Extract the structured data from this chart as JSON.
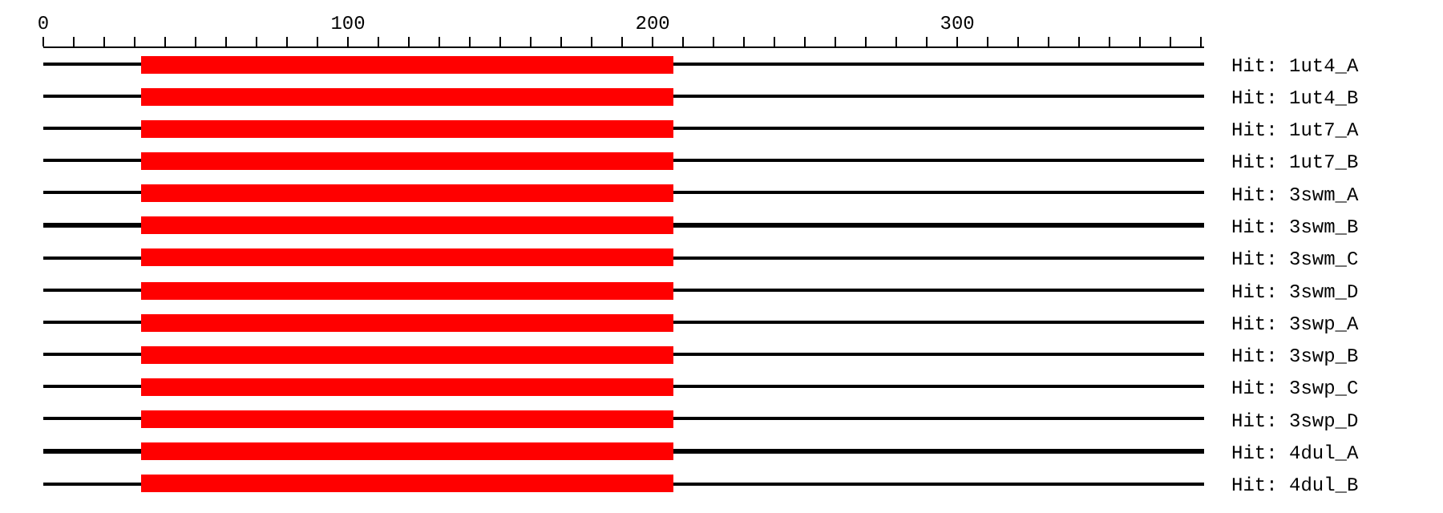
{
  "chart_data": {
    "type": "bar",
    "orientation": "horizontal",
    "categories": [
      "Hit: 1ut4_A",
      "Hit: 1ut4_B",
      "Hit: 1ut7_A",
      "Hit: 1ut7_B",
      "Hit: 3swm_A",
      "Hit: 3swm_B",
      "Hit: 3swm_C",
      "Hit: 3swm_D",
      "Hit: 3swp_A",
      "Hit: 3swp_B",
      "Hit: 3swp_C",
      "Hit: 3swp_D",
      "Hit: 4dul_A",
      "Hit: 4dul_B"
    ],
    "series": [
      {
        "color": "#000000",
        "base": [
          0,
          0,
          0,
          0,
          0,
          0,
          0,
          0,
          0,
          0,
          0,
          0,
          0,
          0
        ],
        "values": [
          381,
          381,
          381,
          381,
          381,
          381,
          381,
          381,
          381,
          381,
          381,
          381,
          381,
          381
        ]
      },
      {
        "color": "#ff0000",
        "base": [
          32,
          32,
          32,
          32,
          32,
          32,
          32,
          32,
          32,
          32,
          32,
          32,
          32,
          32
        ],
        "values": [
          175,
          175,
          175,
          175,
          175,
          175,
          175,
          175,
          175,
          175,
          175,
          175,
          175,
          175
        ]
      }
    ],
    "xlim": [
      0,
      381
    ],
    "xticks": [
      0,
      {
        "value": 10,
        "label": null
      },
      {
        "value": 20,
        "label": null
      },
      {
        "value": 30,
        "label": null
      },
      {
        "value": 40,
        "label": null
      },
      {
        "value": 50,
        "label": null
      },
      {
        "value": 60,
        "label": null
      },
      {
        "value": 70,
        "label": null
      },
      {
        "value": 80,
        "label": null
      },
      {
        "value": 90,
        "label": null
      },
      100,
      {
        "value": 110,
        "label": null
      },
      {
        "value": 120,
        "label": null
      },
      {
        "value": 130,
        "label": null
      },
      {
        "value": 140,
        "label": null
      },
      {
        "value": 150,
        "label": null
      },
      {
        "value": 160,
        "label": null
      },
      {
        "value": 170,
        "label": null
      },
      {
        "value": 180,
        "label": null
      },
      {
        "value": 190,
        "label": null
      },
      200,
      {
        "value": 210,
        "label": null
      },
      {
        "value": 220,
        "label": null
      },
      {
        "value": 230,
        "label": null
      },
      {
        "value": 240,
        "label": null
      },
      {
        "value": 250,
        "label": null
      },
      {
        "value": 260,
        "label": null
      },
      {
        "value": 270,
        "label": null
      },
      {
        "value": 280,
        "label": null
      },
      {
        "value": 290,
        "label": null
      },
      300,
      {
        "value": 310,
        "label": null
      },
      {
        "value": 320,
        "label": null
      },
      {
        "value": 330,
        "label": null
      },
      {
        "value": 340,
        "label": null
      },
      {
        "value": 350,
        "label": null
      },
      {
        "value": 360,
        "label": null
      },
      {
        "value": 370,
        "label": null
      },
      {
        "value": 380,
        "label": null
      }
    ]
  }
}
